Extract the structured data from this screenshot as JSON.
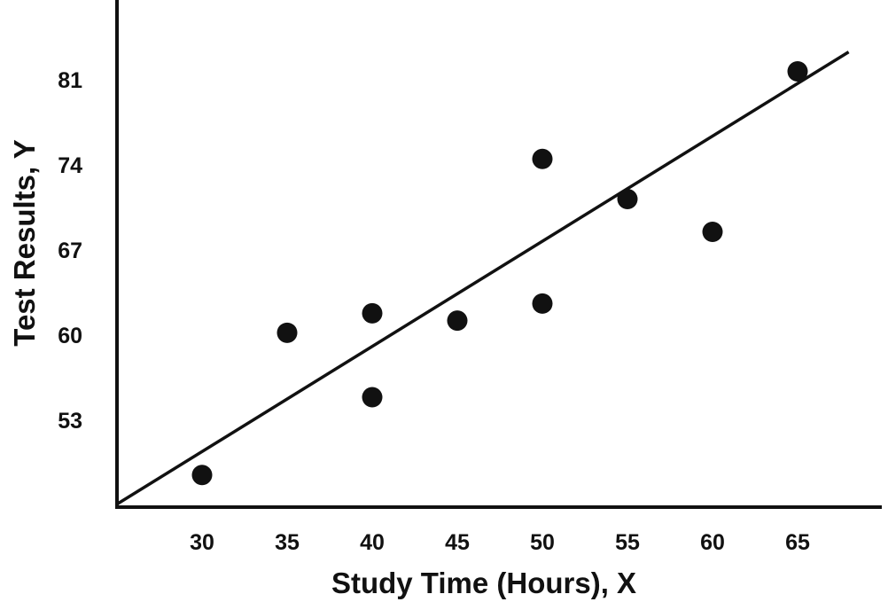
{
  "chart_data": {
    "type": "scatter",
    "title": "",
    "xlabel": "Study Time (Hours), X",
    "ylabel": "Test Results, Y",
    "x_ticks": [
      30,
      35,
      40,
      45,
      50,
      55,
      60,
      65
    ],
    "y_ticks": [
      53,
      60,
      67,
      74,
      81
    ],
    "xlim": [
      25,
      68
    ],
    "ylim": [
      45,
      88
    ],
    "grid": false,
    "legend": "none",
    "point_color": "#111111",
    "series": [
      {
        "points": [
          {
            "x": 30,
            "y": 48.5
          },
          {
            "x": 35,
            "y": 60.2
          },
          {
            "x": 40,
            "y": 61.8
          },
          {
            "x": 40,
            "y": 54.9
          },
          {
            "x": 45,
            "y": 61.2
          },
          {
            "x": 50,
            "y": 74.5
          },
          {
            "x": 50,
            "y": 62.6
          },
          {
            "x": 55,
            "y": 71.2
          },
          {
            "x": 60,
            "y": 68.5
          },
          {
            "x": 65,
            "y": 81.7
          }
        ]
      }
    ],
    "trend_line": {
      "x": [
        25,
        68
      ],
      "y": [
        46.1,
        83.3
      ]
    }
  }
}
